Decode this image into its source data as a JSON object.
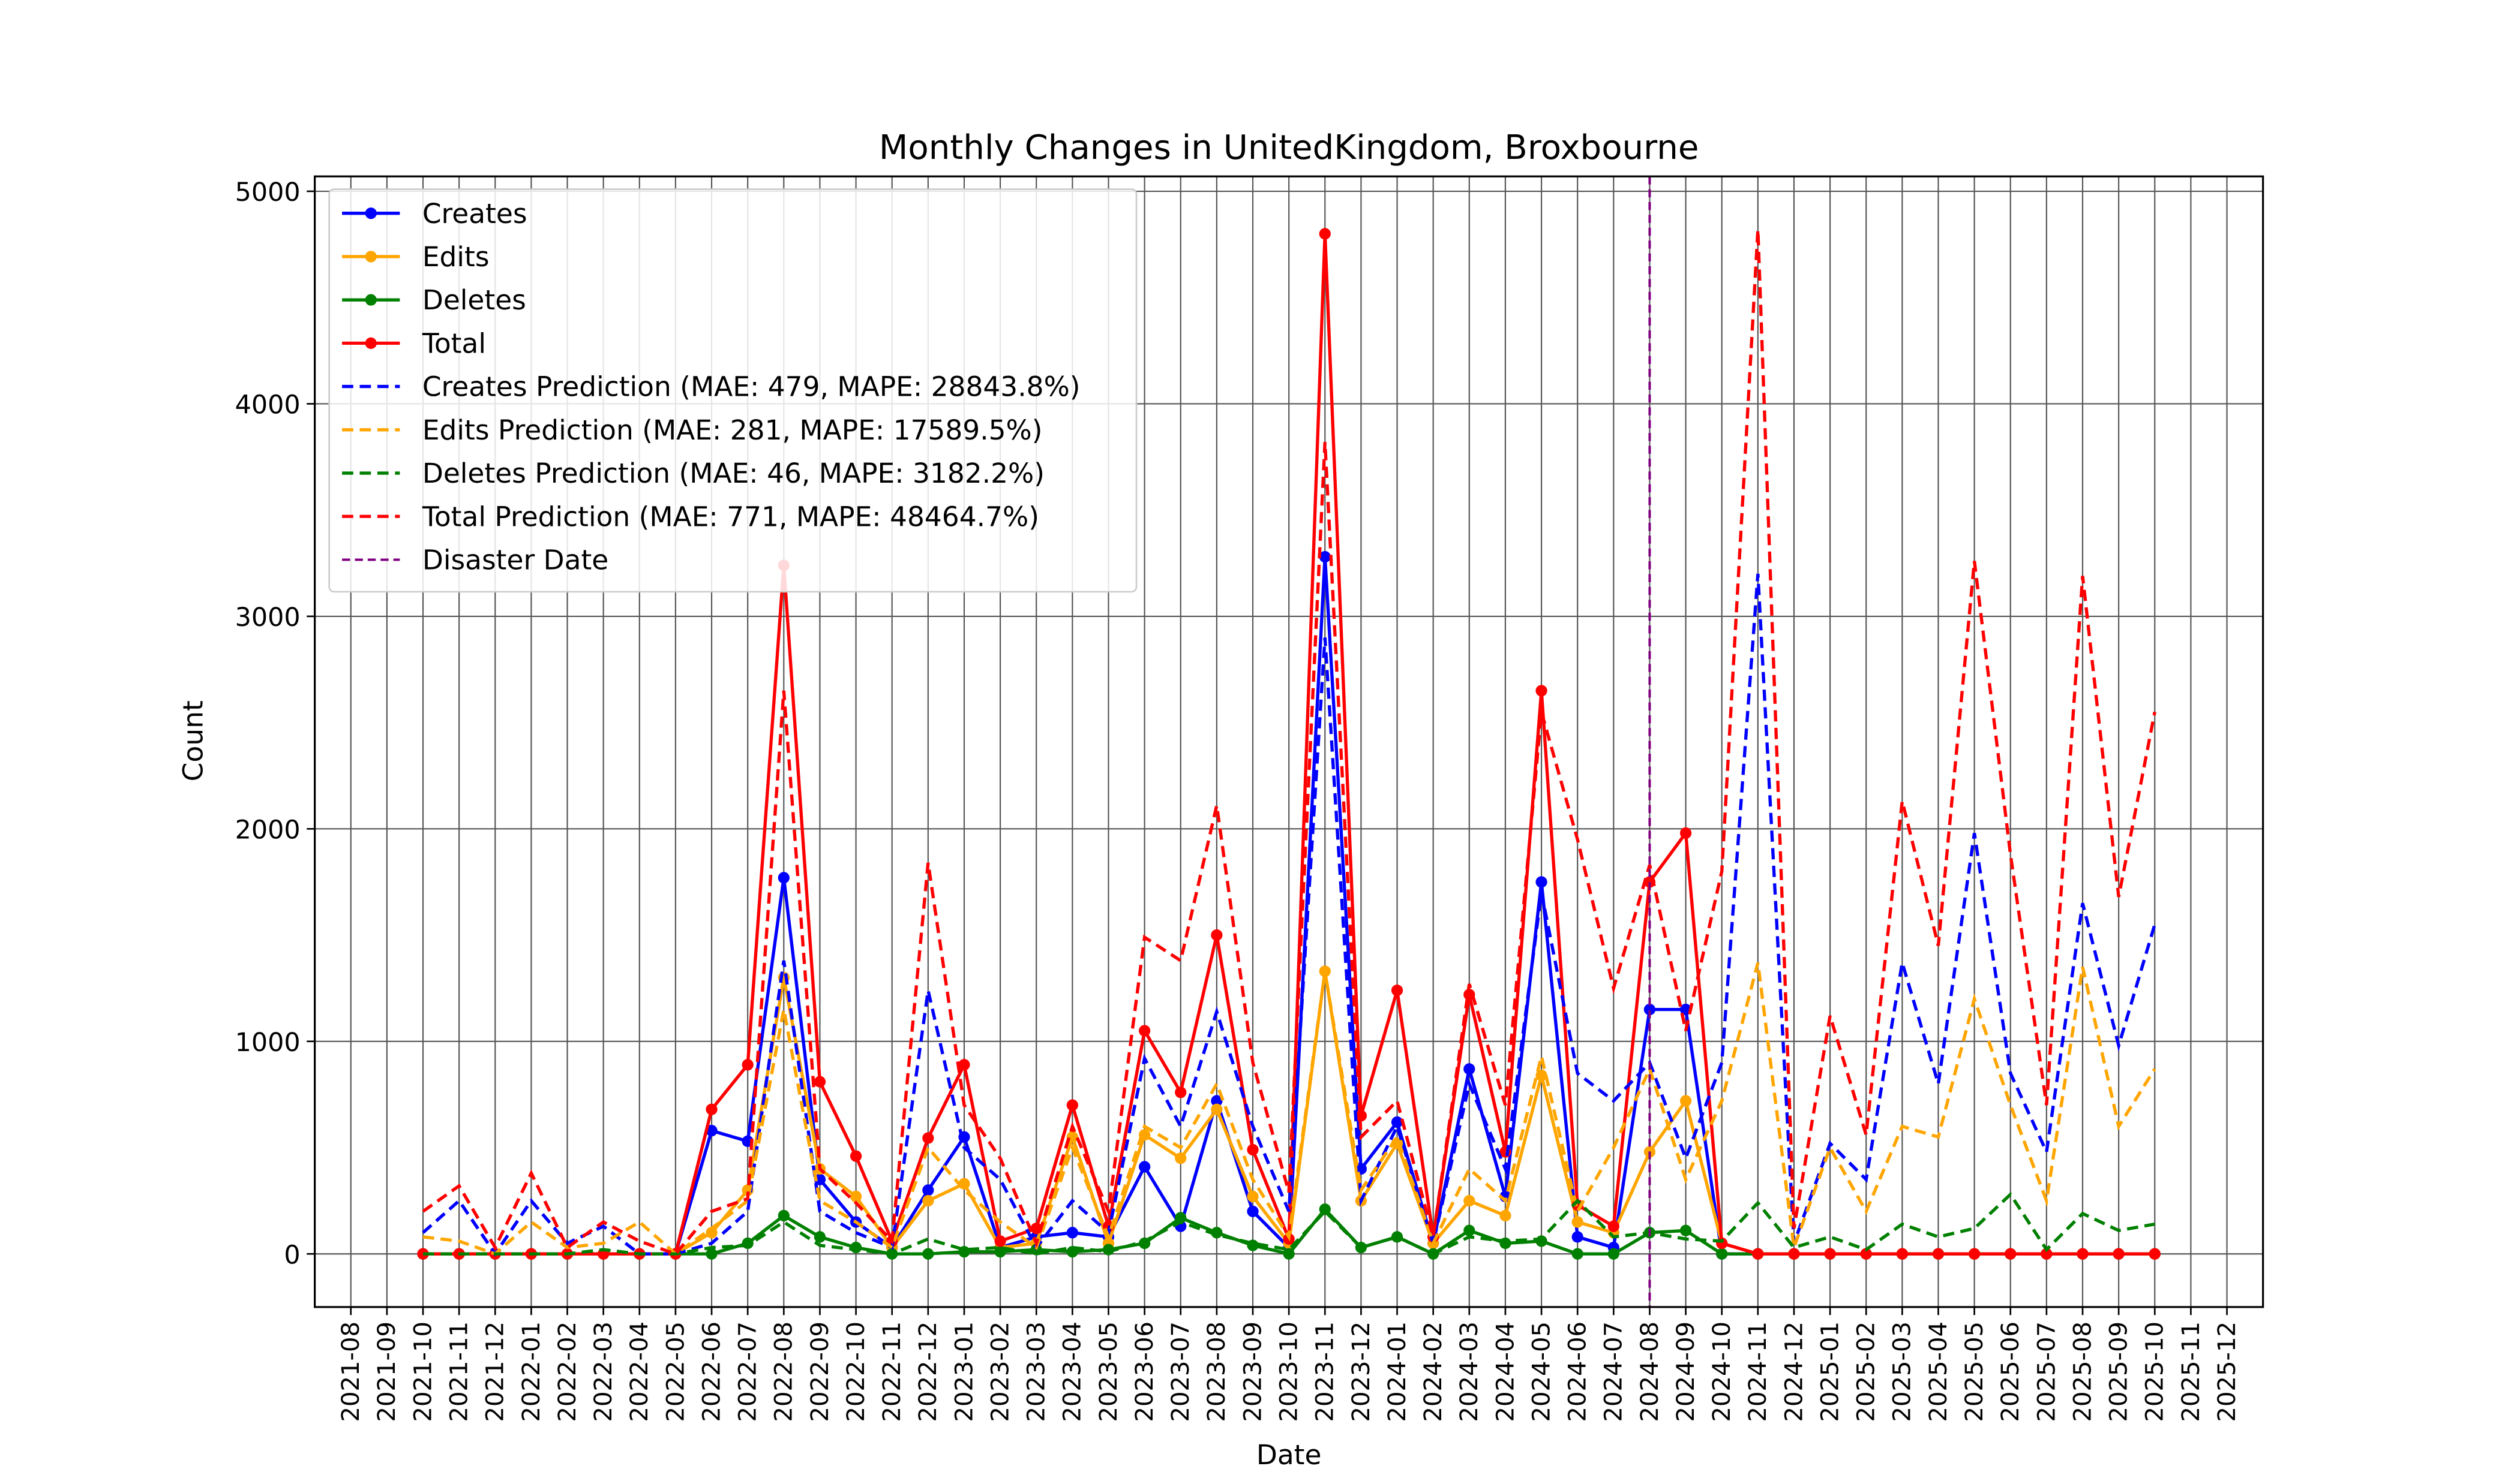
{
  "chart_data": {
    "type": "line",
    "title": "Monthly Changes in UnitedKingdom, Broxbourne",
    "xlabel": "Date",
    "ylabel": "Count",
    "x": [
      "2021-10",
      "2021-11",
      "2021-12",
      "2022-01",
      "2022-02",
      "2022-03",
      "2022-04",
      "2022-05",
      "2022-06",
      "2022-07",
      "2022-08",
      "2022-09",
      "2022-10",
      "2022-11",
      "2022-12",
      "2023-01",
      "2023-02",
      "2023-03",
      "2023-04",
      "2023-05",
      "2023-06",
      "2023-07",
      "2023-08",
      "2023-09",
      "2023-10",
      "2023-11",
      "2023-12",
      "2024-01",
      "2024-02",
      "2024-03",
      "2024-04",
      "2024-05",
      "2024-06",
      "2024-07",
      "2024-08",
      "2024-09",
      "2024-10",
      "2024-11",
      "2024-12",
      "2025-01",
      "2025-02",
      "2025-03",
      "2025-04",
      "2025-05",
      "2025-06",
      "2025-07",
      "2025-08",
      "2025-09",
      "2025-10"
    ],
    "series": [
      {
        "name": "Creates",
        "color": "#0000ff",
        "linestyle": "solid",
        "marker": true,
        "values": [
          0,
          0,
          0,
          0,
          0,
          0,
          0,
          0,
          580,
          530,
          1770,
          350,
          150,
          30,
          300,
          550,
          30,
          80,
          100,
          80,
          410,
          130,
          720,
          200,
          30,
          3280,
          400,
          620,
          50,
          870,
          270,
          1750,
          80,
          30,
          1150,
          1150,
          0,
          0,
          0,
          0,
          0,
          0,
          0,
          0,
          0,
          0,
          0,
          0,
          0
        ]
      },
      {
        "name": "Edits",
        "color": "#ffa500",
        "linestyle": "solid",
        "marker": true,
        "values": [
          0,
          0,
          0,
          0,
          0,
          0,
          0,
          0,
          100,
          300,
          1300,
          400,
          270,
          30,
          250,
          330,
          30,
          50,
          550,
          50,
          560,
          450,
          680,
          270,
          50,
          1330,
          250,
          520,
          50,
          250,
          180,
          840,
          150,
          100,
          480,
          720,
          50,
          0,
          0,
          0,
          0,
          0,
          0,
          0,
          0,
          0,
          0,
          0,
          0
        ]
      },
      {
        "name": "Deletes",
        "color": "#008000",
        "linestyle": "solid",
        "marker": true,
        "values": [
          0,
          0,
          0,
          0,
          0,
          0,
          0,
          0,
          0,
          50,
          180,
          80,
          30,
          0,
          0,
          10,
          10,
          20,
          10,
          20,
          50,
          170,
          100,
          40,
          0,
          210,
          30,
          80,
          0,
          110,
          50,
          60,
          0,
          0,
          100,
          110,
          0,
          0,
          0,
          0,
          0,
          0,
          0,
          0,
          0,
          0,
          0,
          0,
          0
        ]
      },
      {
        "name": "Total",
        "color": "#ff0000",
        "linestyle": "solid",
        "marker": true,
        "values": [
          0,
          0,
          0,
          0,
          0,
          0,
          0,
          0,
          680,
          890,
          3240,
          810,
          460,
          60,
          545,
          890,
          60,
          120,
          700,
          130,
          1050,
          760,
          1500,
          490,
          70,
          4800,
          650,
          1240,
          80,
          1220,
          480,
          2650,
          230,
          130,
          1750,
          1980,
          50,
          0,
          0,
          0,
          0,
          0,
          0,
          0,
          0,
          0,
          0,
          0,
          0
        ]
      },
      {
        "name": "Creates Prediction (MAE: 479, MAPE: 28843.8%)",
        "color": "#0000ff",
        "linestyle": "dashed",
        "marker": false,
        "values": [
          100,
          250,
          0,
          250,
          50,
          130,
          0,
          0,
          50,
          200,
          1380,
          200,
          100,
          30,
          1240,
          500,
          350,
          30,
          250,
          100,
          920,
          600,
          1140,
          600,
          200,
          2900,
          250,
          600,
          50,
          800,
          400,
          1700,
          850,
          720,
          900,
          450,
          900,
          3200,
          50,
          520,
          350,
          1370,
          800,
          1980,
          850,
          480,
          1650,
          980,
          1550
        ]
      },
      {
        "name": "Edits Prediction (MAE: 281, MAPE: 17589.5%)",
        "color": "#ffa500",
        "linestyle": "dashed",
        "marker": false,
        "values": [
          80,
          60,
          0,
          150,
          30,
          50,
          150,
          0,
          120,
          250,
          1150,
          250,
          150,
          30,
          500,
          300,
          150,
          30,
          500,
          80,
          600,
          500,
          800,
          350,
          80,
          1330,
          300,
          550,
          50,
          400,
          250,
          930,
          200,
          500,
          870,
          350,
          720,
          1370,
          30,
          500,
          200,
          600,
          550,
          1200,
          700,
          250,
          1350,
          600,
          870
        ]
      },
      {
        "name": "Deletes Prediction (MAE: 46, MAPE: 3182.2%)",
        "color": "#008000",
        "linestyle": "dashed",
        "marker": false,
        "values": [
          0,
          0,
          0,
          0,
          0,
          20,
          0,
          0,
          30,
          40,
          150,
          40,
          20,
          0,
          70,
          20,
          30,
          0,
          30,
          10,
          60,
          150,
          90,
          50,
          20,
          200,
          30,
          80,
          0,
          80,
          60,
          70,
          250,
          80,
          100,
          70,
          60,
          240,
          30,
          80,
          20,
          140,
          80,
          120,
          280,
          20,
          190,
          110,
          140
        ]
      },
      {
        "name": "Total Prediction (MAE: 771, MAPE: 48464.7%)",
        "color": "#ff0000",
        "linestyle": "dashed",
        "marker": false,
        "values": [
          200,
          320,
          30,
          380,
          30,
          150,
          60,
          0,
          200,
          260,
          2650,
          400,
          240,
          60,
          1840,
          700,
          450,
          50,
          600,
          200,
          1490,
          1380,
          2110,
          900,
          290,
          3820,
          550,
          720,
          80,
          1270,
          700,
          2550,
          1950,
          1250,
          1830,
          1050,
          1800,
          4820,
          120,
          1120,
          560,
          2130,
          1450,
          3260,
          1880,
          700,
          3190,
          1680,
          2550
        ]
      }
    ],
    "vlines": [
      {
        "name": "Disaster Date",
        "x": "2024-08",
        "color": "#800080"
      }
    ],
    "xlim": [
      "2021-07",
      "2026-01"
    ],
    "xticks": [
      "2021-08",
      "2021-09",
      "2021-10",
      "2021-11",
      "2021-12",
      "2022-01",
      "2022-02",
      "2022-03",
      "2022-04",
      "2022-05",
      "2022-06",
      "2022-07",
      "2022-08",
      "2022-09",
      "2022-10",
      "2022-11",
      "2022-12",
      "2023-01",
      "2023-02",
      "2023-03",
      "2023-04",
      "2023-05",
      "2023-06",
      "2023-07",
      "2023-08",
      "2023-09",
      "2023-10",
      "2023-11",
      "2023-12",
      "2024-01",
      "2024-02",
      "2024-03",
      "2024-04",
      "2024-05",
      "2024-06",
      "2024-07",
      "2024-08",
      "2024-09",
      "2024-10",
      "2024-11",
      "2024-12",
      "2025-01",
      "2025-02",
      "2025-03",
      "2025-04",
      "2025-05",
      "2025-06",
      "2025-07",
      "2025-08",
      "2025-09",
      "2025-10",
      "2025-11",
      "2025-12"
    ],
    "ylim": [
      -250,
      5070
    ],
    "yticks": [
      0,
      1000,
      2000,
      3000,
      4000,
      5000
    ],
    "grid": true,
    "legend": "upper left"
  }
}
